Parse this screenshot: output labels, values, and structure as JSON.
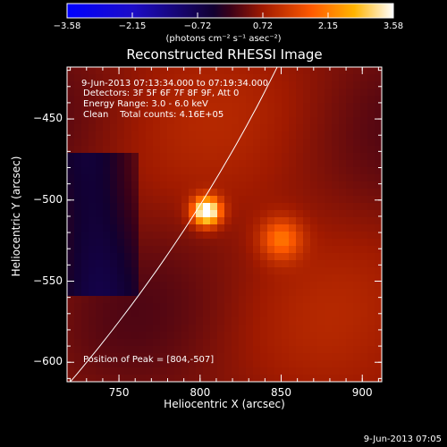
{
  "colorbar": {
    "tick_labels": [
      "-3.58",
      "-2.15",
      "-0.72",
      "0.72",
      "2.15",
      "3.58"
    ],
    "unit_text": "(photons cm⁻² s⁻¹ asec⁻²)"
  },
  "title": "Reconstructed RHESSI Image",
  "annotations": {
    "time_range": "9-Jun-2013 07:13:34.000 to 07:19:34.000",
    "detectors": "Detectors: 3F 5F 6F 7F 8F 9F, Att 0",
    "energy_range": "Energy Range: 3.0 - 6.0 keV",
    "algorithm": "Clean    Total counts: 4.16E+05",
    "peak": "Position of Peak = [804,-507]"
  },
  "footer": "9-Jun-2013 07:05",
  "chart_data": {
    "type": "heatmap",
    "title": "Reconstructed RHESSI Image",
    "xlabel": "Heliocentric X (arcsec)",
    "ylabel": "Heliocentric Y (arcsec)",
    "xlim": [
      718,
      912
    ],
    "ylim": [
      -612,
      -418
    ],
    "xticks": [
      750,
      800,
      850,
      900
    ],
    "yticks": [
      -450,
      -500,
      -550,
      -600
    ],
    "colorbar_range": [
      -3.58,
      3.58
    ],
    "colorbar_ticks": [
      -3.58,
      -2.15,
      -0.72,
      0.72,
      2.15,
      3.58
    ],
    "peak_position": [
      804,
      -507
    ],
    "sources": [
      {
        "x": 804,
        "y": -507,
        "peak": 3.58,
        "sigma": 6
      },
      {
        "x": 850,
        "y": -524,
        "peak": 1.4,
        "sigma": 9
      }
    ],
    "limb_circle": true,
    "colors": {
      "limb": "#ffffff",
      "low": "#0000ff",
      "zero": "#000000",
      "high": "#ffffff"
    }
  }
}
